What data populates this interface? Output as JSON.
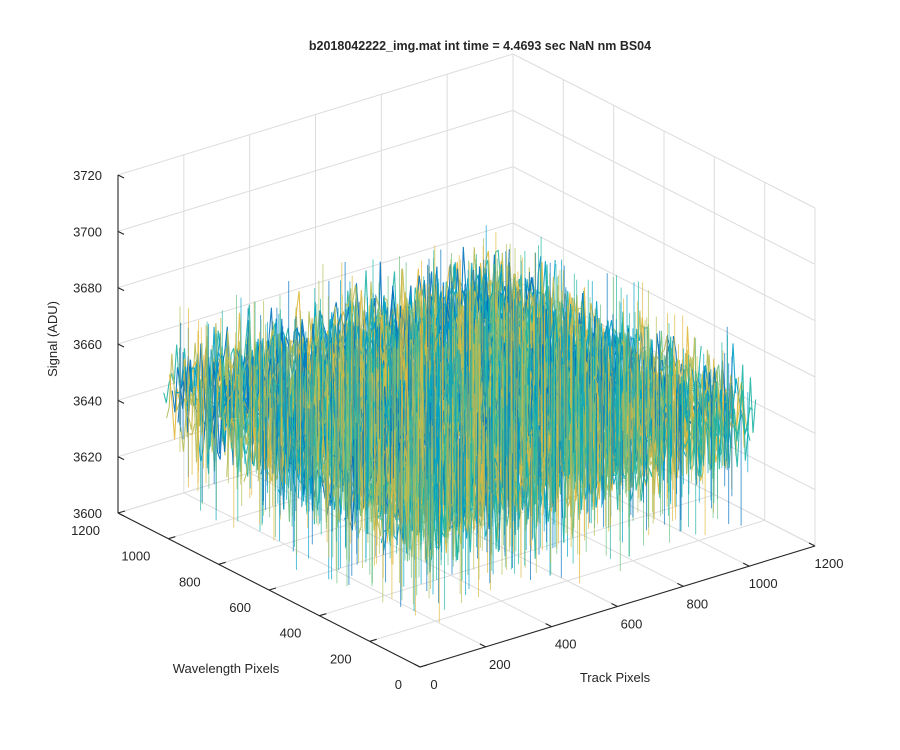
{
  "chart_data": {
    "type": "surface3d",
    "title": "b2018042222_img.mat int time = 4.4693 sec  NaN nm BS04",
    "xlabel": "Track Pixels",
    "ylabel": "Wavelength Pixels",
    "zlabel": "Signal (ADU)",
    "xlim": [
      0,
      1200
    ],
    "ylim": [
      0,
      1200
    ],
    "zlim": [
      3600,
      3720
    ],
    "xticks": [
      "0",
      "200",
      "400",
      "600",
      "800",
      "1000",
      "1200"
    ],
    "yticks": [
      "0",
      "200",
      "400",
      "600",
      "800",
      "1000",
      "1200"
    ],
    "zticks": [
      "3600",
      "3620",
      "3640",
      "3660",
      "3680",
      "3700",
      "3720"
    ],
    "data_extent": {
      "track_pixels": [
        0,
        1024
      ],
      "wavelength_pixels": [
        0,
        1024
      ]
    },
    "signal_mean": 3651,
    "signal_noise_range": [
      3610,
      3700
    ],
    "colormap": [
      "#0072bd",
      "#00a0c8",
      "#1fb5a5",
      "#6cc080",
      "#b7bd58",
      "#e0b83c"
    ],
    "grid": true,
    "box": true
  }
}
